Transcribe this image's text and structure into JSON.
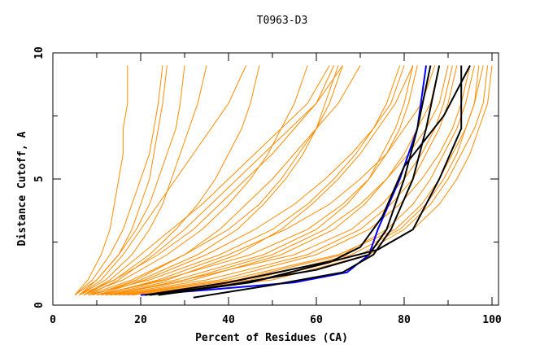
{
  "chart_data": {
    "type": "line",
    "title": "T0963-D3",
    "xlabel": "Percent of Residues (CA)",
    "ylabel": "Distance Cutoff, A",
    "xlim": [
      0,
      100
    ],
    "ylim": [
      0,
      10
    ],
    "x_ticks": [
      "0",
      "20",
      "40",
      "60",
      "80",
      "100"
    ],
    "y_ticks": [
      "0",
      "5",
      "10"
    ],
    "grid": false,
    "colors": {
      "other_models": "#ff8c00",
      "highlight_black": "#000000",
      "highlight_blue": "#0000ff"
    },
    "orange_distances": [
      0.4,
      1,
      2,
      3,
      4,
      5,
      6,
      7,
      8,
      9.5
    ],
    "orange_series_x": [
      [
        5,
        8,
        11,
        13,
        14,
        15,
        16,
        16,
        17,
        17
      ],
      [
        6,
        10,
        15,
        19,
        22,
        24,
        26,
        28,
        29,
        30
      ],
      [
        7,
        14,
        22,
        28,
        33,
        37,
        40,
        43,
        45,
        47
      ],
      [
        8,
        18,
        30,
        40,
        47,
        52,
        56,
        60,
        62,
        65
      ],
      [
        10,
        25,
        45,
        58,
        66,
        72,
        76,
        79,
        81,
        83
      ],
      [
        12,
        30,
        55,
        68,
        75,
        80,
        84,
        87,
        89,
        91
      ],
      [
        15,
        40,
        65,
        78,
        84,
        88,
        91,
        94,
        96,
        98
      ],
      [
        20,
        50,
        72,
        82,
        88,
        92,
        95,
        97,
        99,
        100
      ],
      [
        6,
        12,
        18,
        22,
        25,
        27,
        29,
        31,
        33,
        35
      ],
      [
        9,
        20,
        33,
        42,
        48,
        53,
        57,
        60,
        63,
        66
      ],
      [
        11,
        28,
        48,
        60,
        67,
        72,
        75,
        78,
        80,
        82
      ],
      [
        7,
        16,
        26,
        34,
        40,
        45,
        49,
        52,
        55,
        58
      ],
      [
        13,
        35,
        58,
        70,
        77,
        82,
        85,
        88,
        90,
        92
      ],
      [
        5,
        9,
        13,
        16,
        18,
        20,
        22,
        23,
        24,
        25
      ],
      [
        17,
        45,
        68,
        79,
        85,
        89,
        92,
        94,
        96,
        97
      ],
      [
        8,
        22,
        38,
        50,
        58,
        64,
        69,
        73,
        76,
        79
      ],
      [
        10,
        26,
        42,
        52,
        59,
        65,
        70,
        74,
        78,
        82
      ],
      [
        6,
        11,
        16,
        20,
        24,
        28,
        32,
        36,
        40,
        44
      ],
      [
        14,
        38,
        60,
        72,
        79,
        84,
        88,
        91,
        93,
        95
      ],
      [
        9,
        19,
        30,
        38,
        44,
        50,
        55,
        60,
        65,
        70
      ],
      [
        12,
        32,
        52,
        64,
        71,
        76,
        80,
        83,
        86,
        88
      ],
      [
        7,
        13,
        20,
        27,
        34,
        40,
        46,
        52,
        58,
        63
      ],
      [
        16,
        42,
        66,
        76,
        82,
        86,
        89,
        92,
        94,
        96
      ],
      [
        8,
        15,
        23,
        30,
        36,
        42,
        48,
        54,
        60,
        66
      ],
      [
        11,
        24,
        40,
        53,
        63,
        70,
        76,
        80,
        84,
        87
      ],
      [
        5,
        10,
        15,
        18,
        20,
        22,
        23,
        24,
        25,
        26
      ],
      [
        18,
        48,
        70,
        80,
        86,
        90,
        93,
        96,
        98,
        99
      ],
      [
        10,
        21,
        35,
        46,
        55,
        62,
        68,
        73,
        77,
        80
      ],
      [
        6,
        14,
        24,
        32,
        38,
        44,
        50,
        55,
        60,
        64
      ],
      [
        13,
        30,
        50,
        62,
        70,
        76,
        81,
        85,
        88,
        90
      ]
    ],
    "highlight_series": [
      {
        "color": "blue",
        "points": [
          [
            20,
            0.4
          ],
          [
            35,
            0.6
          ],
          [
            55,
            0.9
          ],
          [
            67,
            1.3
          ],
          [
            72,
            2
          ],
          [
            74,
            3
          ],
          [
            79,
            5
          ],
          [
            83,
            7
          ],
          [
            85,
            9.5
          ]
        ]
      },
      {
        "color": "black",
        "points": [
          [
            22,
            0.4
          ],
          [
            40,
            0.8
          ],
          [
            60,
            1.4
          ],
          [
            72,
            2
          ],
          [
            76,
            3
          ],
          [
            80,
            5
          ],
          [
            83,
            7
          ],
          [
            86,
            9.5
          ]
        ]
      },
      {
        "color": "black",
        "points": [
          [
            32,
            0.3
          ],
          [
            50,
            0.8
          ],
          [
            66,
            1.3
          ],
          [
            73,
            2
          ],
          [
            77,
            3
          ],
          [
            82,
            5
          ],
          [
            85,
            7
          ],
          [
            88,
            9.5
          ]
        ]
      },
      {
        "color": "black",
        "points": [
          [
            24,
            0.4
          ],
          [
            45,
            0.9
          ],
          [
            63,
            1.7
          ],
          [
            70,
            2.3
          ],
          [
            75,
            3.5
          ],
          [
            80,
            5.5
          ],
          [
            89,
            7.5
          ],
          [
            95,
            9.5
          ]
        ]
      },
      {
        "color": "black",
        "points": [
          [
            21,
            0.4
          ],
          [
            40,
            0.9
          ],
          [
            65,
            1.8
          ],
          [
            74,
            2.2
          ],
          [
            82,
            3
          ],
          [
            88,
            5
          ],
          [
            93,
            7
          ],
          [
            93,
            9.5
          ]
        ]
      }
    ]
  }
}
